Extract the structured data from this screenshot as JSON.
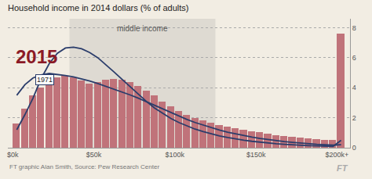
{
  "chart_data": {
    "type": "bar",
    "title": "Household income in 2014 dollars (% of adults)",
    "background": "#f2ede3",
    "xlim": [
      -3000,
      208000
    ],
    "ylim": [
      0,
      8.6
    ],
    "xticks": [
      {
        "value": 0,
        "label": "$0k"
      },
      {
        "value": 50000,
        "label": "$50k"
      },
      {
        "value": 100000,
        "label": "$100k"
      },
      {
        "value": 150000,
        "label": "$150k"
      },
      {
        "value": 200000,
        "label": "$200k+"
      }
    ],
    "yticks": [
      0,
      2,
      4,
      6,
      8
    ],
    "grid": "y",
    "bands": [
      {
        "from": 35000,
        "to": 125000,
        "label": "middle income",
        "color": "#dedad2"
      }
    ],
    "series": [
      {
        "type": "bar",
        "color": "#c0737a",
        "x": [
          0,
          5000,
          10000,
          15000,
          20000,
          25000,
          30000,
          35000,
          40000,
          45000,
          50000,
          55000,
          60000,
          65000,
          70000,
          75000,
          80000,
          85000,
          90000,
          95000,
          100000,
          105000,
          110000,
          115000,
          120000,
          125000,
          130000,
          135000,
          140000,
          145000,
          150000,
          155000,
          160000,
          165000,
          170000,
          175000,
          180000,
          185000,
          190000,
          195000,
          200000
        ],
        "values": [
          1.6,
          2.6,
          3.5,
          4.0,
          4.4,
          4.7,
          4.8,
          4.7,
          4.5,
          4.3,
          4.4,
          4.55,
          4.6,
          4.55,
          4.4,
          4.1,
          3.8,
          3.5,
          3.1,
          2.75,
          2.45,
          2.2,
          2.0,
          1.82,
          1.65,
          1.52,
          1.42,
          1.32,
          1.22,
          1.12,
          1.02,
          0.93,
          0.86,
          0.8,
          0.74,
          0.68,
          0.63,
          0.58,
          0.54,
          0.5,
          7.6
        ]
      },
      {
        "type": "line",
        "color": "#2b3d6b",
        "x": [
          2500,
          7500,
          12500,
          17500,
          22500,
          27500,
          32500,
          37500,
          42500,
          47500,
          52500,
          57500,
          62500,
          67500,
          72500,
          77500,
          82500,
          87500,
          92500,
          97500,
          102500,
          107500,
          112500,
          117500,
          122500,
          127500,
          132500,
          137500,
          142500,
          147500,
          152500,
          157500,
          162500,
          167500,
          172500,
          177500,
          182500,
          187500,
          192500,
          197500,
          202500
        ],
        "values": [
          3.5,
          4.2,
          4.65,
          4.85,
          4.95,
          4.9,
          4.82,
          4.72,
          4.6,
          4.45,
          4.28,
          4.1,
          3.92,
          3.72,
          3.52,
          3.3,
          3.06,
          2.82,
          2.58,
          2.34,
          2.1,
          1.88,
          1.68,
          1.5,
          1.33,
          1.18,
          1.04,
          0.92,
          0.81,
          0.71,
          0.62,
          0.54,
          0.47,
          0.41,
          0.36,
          0.31,
          0.27,
          0.23,
          0.2,
          0.17,
          0.2
        ]
      },
      {
        "type": "line",
        "color": "#2b3d6b",
        "x": [
          2500,
          7500,
          12500,
          17500,
          22500,
          27500,
          32500,
          37500,
          42500,
          47500,
          52500,
          57500,
          62500,
          67500,
          72500,
          77500,
          82500,
          87500,
          92500,
          97500,
          102500,
          107500,
          112500,
          117500,
          122500,
          127500,
          132500,
          137500,
          142500,
          147500,
          152500,
          157500,
          162500,
          167500,
          172500,
          177500,
          182500,
          187500,
          192500,
          197500,
          202500
        ],
        "values": [
          1.2,
          2.2,
          3.3,
          4.6,
          5.6,
          6.3,
          6.65,
          6.7,
          6.6,
          6.35,
          6.0,
          5.55,
          5.05,
          4.55,
          4.05,
          3.55,
          3.08,
          2.65,
          2.28,
          1.95,
          1.68,
          1.44,
          1.24,
          1.07,
          0.92,
          0.79,
          0.68,
          0.58,
          0.5,
          0.43,
          0.37,
          0.31,
          0.27,
          0.23,
          0.19,
          0.16,
          0.14,
          0.12,
          0.1,
          0.09,
          0.5
        ]
      }
    ],
    "annotations": [
      {
        "text": "2015",
        "x": 1000,
        "y": 6.9,
        "color": "#8b1a26"
      },
      {
        "text": "1971",
        "x": 14000,
        "y": 4.55,
        "border_color": "#2b3d6b"
      }
    ],
    "notes": [
      "FT graphic Alan Smith, Source: Pew Research Center",
      "FT"
    ]
  }
}
